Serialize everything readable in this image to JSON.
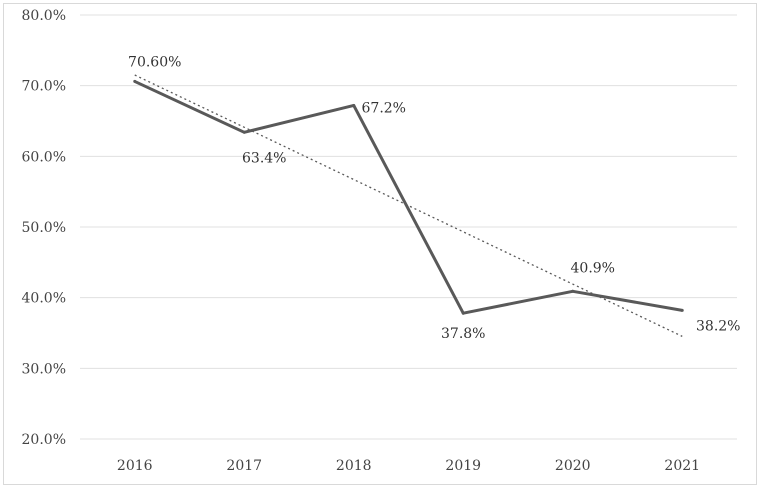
{
  "chart_data": {
    "type": "line",
    "categories": [
      "2016",
      "2017",
      "2018",
      "2019",
      "2020",
      "2021"
    ],
    "series": [
      {
        "values": [
          70.6,
          63.4,
          67.2,
          37.8,
          40.9,
          38.2
        ]
      }
    ],
    "data_labels": [
      "70.60%",
      "63.4%",
      "67.2%",
      "37.8%",
      "40.9%",
      "38.2%"
    ],
    "trendline": {
      "type": "linear",
      "style": "dotted"
    },
    "ylim": [
      20,
      80
    ],
    "yticks": [
      20,
      30,
      40,
      50,
      60,
      70,
      80
    ],
    "ytick_labels": [
      "20.0%",
      "30.0%",
      "40.0%",
      "50.0%",
      "60.0%",
      "70.0%",
      "80.0%"
    ],
    "grid": true,
    "legend": "none",
    "title": "",
    "xlabel": "",
    "ylabel": "",
    "colors": {
      "line": "#595959",
      "trend": "#595959",
      "grid": "#e0e0e0"
    }
  }
}
